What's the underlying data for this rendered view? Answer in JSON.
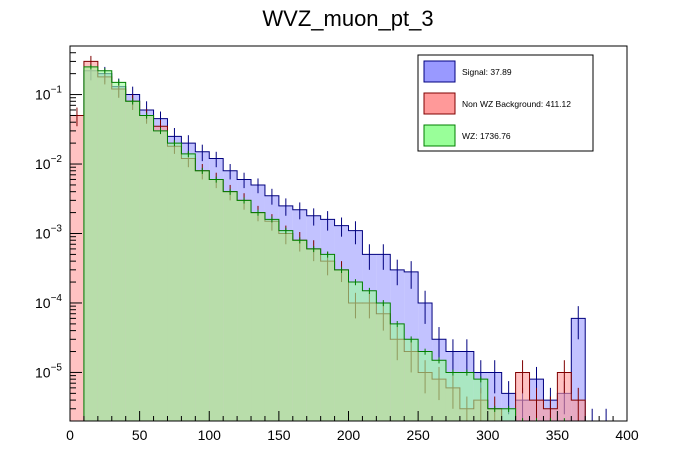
{
  "chart_data": {
    "type": "histogram",
    "title": "WVZ_muon_pt_3",
    "xlabel": "",
    "ylabel": "",
    "xlim": [
      0,
      400
    ],
    "ylim": [
      2e-06,
      0.5
    ],
    "log_y": true,
    "grid": false,
    "legend_position": "top-right",
    "bin_edges": [
      0,
      10,
      20,
      30,
      40,
      50,
      60,
      70,
      80,
      90,
      100,
      110,
      120,
      130,
      140,
      150,
      160,
      170,
      180,
      190,
      200,
      210,
      220,
      230,
      240,
      250,
      260,
      270,
      280,
      290,
      300,
      310,
      320,
      330,
      340,
      350,
      360,
      370,
      380,
      390,
      400
    ],
    "x_ticks": [
      0,
      50,
      100,
      150,
      200,
      250,
      300,
      350,
      400
    ],
    "x_tick_labels": [
      "0",
      "50",
      "100",
      "150",
      "200",
      "250",
      "300",
      "350",
      "400"
    ],
    "y_ticks": [
      1e-05,
      0.0001,
      0.001,
      0.01,
      0.1
    ],
    "y_tick_labels": [
      {
        "base": "10",
        "exp": "−5"
      },
      {
        "base": "10",
        "exp": "−4"
      },
      {
        "base": "10",
        "exp": "−3"
      },
      {
        "base": "10",
        "exp": "−2"
      },
      {
        "base": "10",
        "exp": "−1"
      }
    ],
    "series": [
      {
        "name": "Signal: 37.89",
        "fill": "#9999ff",
        "line": "#00007f",
        "values": [
          0,
          0.22,
          0.2,
          0.13,
          0.1,
          0.06,
          0.045,
          0.025,
          0.02,
          0.015,
          0.012,
          0.008,
          0.006,
          0.005,
          0.0035,
          0.0025,
          0.0022,
          0.0018,
          0.0016,
          0.0013,
          0.0011,
          0.0005,
          0.0005,
          0.0003,
          0.00028,
          0.0001,
          3e-05,
          2e-05,
          2e-05,
          1e-05,
          1e-05,
          5e-06,
          4e-06,
          8e-06,
          4e-06,
          5e-06,
          6e-05,
          2e-06,
          2e-06,
          0
        ],
        "errors": [
          0,
          0.06,
          0.05,
          0.04,
          0.03,
          0.02,
          0.012,
          0.008,
          0.006,
          0.004,
          0.003,
          0.002,
          0.0015,
          0.0012,
          0.0009,
          0.0007,
          0.0006,
          0.0005,
          0.0005,
          0.0004,
          0.0004,
          0.0002,
          0.0002,
          0.00012,
          0.00012,
          5e-05,
          1.5e-05,
          1e-05,
          1e-05,
          5e-06,
          5e-06,
          2.5e-06,
          2e-06,
          4e-06,
          2e-06,
          2.5e-06,
          3e-05,
          1e-06,
          1e-06,
          0
        ]
      },
      {
        "name": "Non WZ Background: 411.12",
        "fill": "#ff9999",
        "line": "#7f0000",
        "values": [
          0.05,
          0.3,
          0.18,
          0.12,
          0.08,
          0.05,
          0.035,
          0.018,
          0.012,
          0.008,
          0.006,
          0.004,
          0.003,
          0.002,
          0.0015,
          0.001,
          0.0008,
          0.0006,
          0.0004,
          0.0003,
          0.0001,
          0.0001,
          7e-05,
          3e-05,
          2e-05,
          1e-05,
          8e-06,
          6e-06,
          3e-06,
          4e-06,
          3e-06,
          0,
          1e-05,
          4e-06,
          3e-06,
          1e-05,
          4e-06,
          0,
          0,
          0
        ],
        "errors": [
          0.015,
          0.06,
          0.04,
          0.03,
          0.02,
          0.012,
          0.008,
          0.004,
          0.003,
          0.002,
          0.0015,
          0.001,
          0.0008,
          0.0005,
          0.0004,
          0.0003,
          0.00025,
          0.0002,
          0.00015,
          0.0001,
          4e-05,
          4e-05,
          3e-05,
          1.5e-05,
          1e-05,
          5e-06,
          4e-06,
          3e-06,
          1.5e-06,
          2e-06,
          1.5e-06,
          0,
          5e-06,
          2e-06,
          1.5e-06,
          5e-06,
          2e-06,
          0,
          0,
          0
        ]
      },
      {
        "name": "WZ: 1736.76",
        "fill": "#99ff99",
        "line": "#007f00",
        "values": [
          0,
          0.25,
          0.22,
          0.15,
          0.08,
          0.05,
          0.03,
          0.02,
          0.014,
          0.008,
          0.006,
          0.004,
          0.003,
          0.002,
          0.0016,
          0.0011,
          0.0008,
          0.0006,
          0.0005,
          0.0003,
          0.0002,
          0.00015,
          0.0001,
          5e-05,
          3e-05,
          2e-05,
          1.5e-05,
          1e-05,
          1e-05,
          8e-06,
          3e-06,
          3e-06,
          2e-06,
          2e-06,
          2e-06,
          2e-06,
          0,
          0,
          0,
          0
        ],
        "errors": [
          0,
          0.02,
          0.02,
          0.015,
          0.008,
          0.005,
          0.003,
          0.002,
          0.0014,
          0.0008,
          0.0006,
          0.0004,
          0.0003,
          0.0002,
          0.00016,
          0.00011,
          8e-05,
          6e-05,
          5e-05,
          3e-05,
          2e-05,
          1.5e-05,
          1e-05,
          5e-06,
          3e-06,
          2e-06,
          1.5e-06,
          1e-06,
          1e-06,
          8e-07,
          3e-07,
          3e-07,
          2e-07,
          2e-07,
          2e-07,
          2e-07,
          0,
          0,
          0,
          0
        ]
      }
    ]
  }
}
